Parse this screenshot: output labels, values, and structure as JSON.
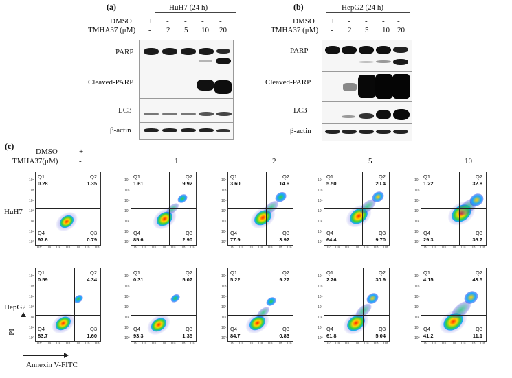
{
  "panel_a": {
    "label": "(a)",
    "title": "HuH7 (24 h)",
    "dmso_label": "DMSO",
    "dose_label": "TMHA37 (μM)",
    "dmso_values": [
      "+",
      "-",
      "-",
      "-",
      "-"
    ],
    "dose_values": [
      "-",
      "2",
      "5",
      "10",
      "20"
    ],
    "rows": [
      "PARP",
      "Cleaved-PARP",
      "LC3",
      "β-actin"
    ]
  },
  "panel_b": {
    "label": "(b)",
    "title": "HepG2 (24 h)",
    "dmso_label": "DMSO",
    "dose_label": "TMHA37 (μM)",
    "dmso_values": [
      "+",
      "-",
      "-",
      "-",
      "-"
    ],
    "dose_values": [
      "-",
      "2",
      "5",
      "10",
      "20"
    ],
    "rows": [
      "PARP",
      "Cleaved-PARP",
      "LC3",
      "β-actin"
    ]
  },
  "panel_c": {
    "label": "(c)",
    "dmso_label": "DMSO",
    "dose_label": "TMHA37(μM)",
    "dmso_values": [
      "+",
      "-",
      "-",
      "-",
      "-"
    ],
    "dose_values": [
      "-",
      "1",
      "2",
      "5",
      "10"
    ],
    "row_labels": [
      "HuH7",
      "HepG2"
    ],
    "y_axis_label": "PI",
    "x_axis_label": "Annexin V-FITC",
    "quadrant_names": [
      "Q1",
      "Q2",
      "Q3",
      "Q4"
    ],
    "tick_labels_x": [
      "10⁰",
      "10¹",
      "10²",
      "10³",
      "10⁴",
      "10⁵",
      "10⁶"
    ],
    "tick_labels_y": [
      "10⁰",
      "10¹",
      "10²",
      "10³",
      "10⁴",
      "10⁵",
      "10⁶"
    ],
    "plots": [
      [
        {
          "q1": "0.28",
          "q2": "1.35",
          "q3": "0.79",
          "q4": "97.6"
        },
        {
          "q1": "1.61",
          "q2": "9.92",
          "q3": "2.90",
          "q4": "85.6"
        },
        {
          "q1": "3.60",
          "q2": "14.6",
          "q3": "3.92",
          "q4": "77.9"
        },
        {
          "q1": "5.50",
          "q2": "20.4",
          "q3": "9.70",
          "q4": "64.4"
        },
        {
          "q1": "1.22",
          "q2": "32.8",
          "q3": "36.7",
          "q4": "29.3"
        }
      ],
      [
        {
          "q1": "0.59",
          "q2": "4.34",
          "q3": "1.60",
          "q4": "83.7"
        },
        {
          "q1": "0.31",
          "q2": "5.07",
          "q3": "1.35",
          "q4": "93.3"
        },
        {
          "q1": "5.22",
          "q2": "9.27",
          "q3": "0.83",
          "q4": "84.7"
        },
        {
          "q1": "2.26",
          "q2": "30.9",
          "q3": "5.04",
          "q4": "61.8"
        },
        {
          "q1": "4.15",
          "q2": "43.5",
          "q3": "11.1",
          "q4": "41.2"
        }
      ]
    ]
  }
}
